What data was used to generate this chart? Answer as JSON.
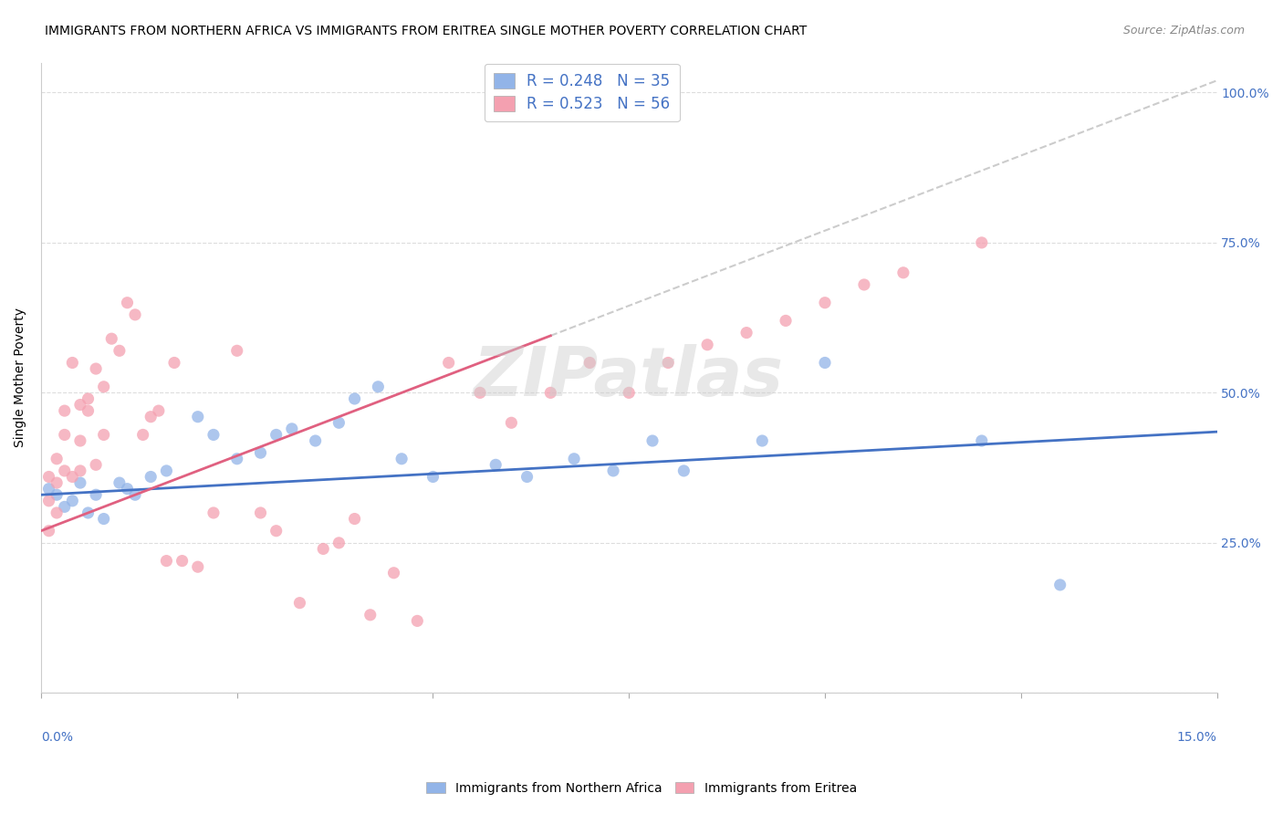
{
  "title": "IMMIGRANTS FROM NORTHERN AFRICA VS IMMIGRANTS FROM ERITREA SINGLE MOTHER POVERTY CORRELATION CHART",
  "source": "Source: ZipAtlas.com",
  "legend_label1": "Immigrants from Northern Africa",
  "legend_label2": "Immigrants from Eritrea",
  "R1": "0.248",
  "N1": "35",
  "R2": "0.523",
  "N2": "56",
  "color_blue": "#92B4E8",
  "color_pink": "#F4A0B0",
  "color_blue_line": "#4472C4",
  "color_pink_line": "#E06080",
  "color_blue_text": "#4472C4",
  "xlim": [
    0.0,
    0.15
  ],
  "ylim": [
    0.0,
    1.05
  ],
  "watermark": "ZIPatlas",
  "ylabel": "Single Mother Poverty",
  "blue_points_x": [
    0.001,
    0.002,
    0.003,
    0.004,
    0.005,
    0.006,
    0.007,
    0.008,
    0.01,
    0.011,
    0.012,
    0.014,
    0.016,
    0.02,
    0.022,
    0.025,
    0.028,
    0.03,
    0.032,
    0.035,
    0.038,
    0.04,
    0.043,
    0.046,
    0.05,
    0.058,
    0.062,
    0.068,
    0.073,
    0.078,
    0.082,
    0.092,
    0.1,
    0.12,
    0.13
  ],
  "blue_points_y": [
    0.34,
    0.33,
    0.31,
    0.32,
    0.35,
    0.3,
    0.33,
    0.29,
    0.35,
    0.34,
    0.33,
    0.36,
    0.37,
    0.46,
    0.43,
    0.39,
    0.4,
    0.43,
    0.44,
    0.42,
    0.45,
    0.49,
    0.51,
    0.39,
    0.36,
    0.38,
    0.36,
    0.39,
    0.37,
    0.42,
    0.37,
    0.42,
    0.55,
    0.42,
    0.18
  ],
  "pink_points_x": [
    0.001,
    0.001,
    0.001,
    0.002,
    0.002,
    0.002,
    0.003,
    0.003,
    0.003,
    0.004,
    0.004,
    0.005,
    0.005,
    0.005,
    0.006,
    0.006,
    0.007,
    0.007,
    0.008,
    0.008,
    0.009,
    0.01,
    0.011,
    0.012,
    0.013,
    0.014,
    0.015,
    0.016,
    0.017,
    0.018,
    0.02,
    0.022,
    0.025,
    0.028,
    0.03,
    0.033,
    0.036,
    0.038,
    0.04,
    0.042,
    0.045,
    0.048,
    0.052,
    0.056,
    0.06,
    0.065,
    0.07,
    0.075,
    0.08,
    0.085,
    0.09,
    0.095,
    0.1,
    0.105,
    0.11,
    0.12
  ],
  "pink_points_y": [
    0.27,
    0.32,
    0.36,
    0.3,
    0.35,
    0.39,
    0.37,
    0.43,
    0.47,
    0.36,
    0.55,
    0.37,
    0.42,
    0.48,
    0.47,
    0.49,
    0.38,
    0.54,
    0.43,
    0.51,
    0.59,
    0.57,
    0.65,
    0.63,
    0.43,
    0.46,
    0.47,
    0.22,
    0.55,
    0.22,
    0.21,
    0.3,
    0.57,
    0.3,
    0.27,
    0.15,
    0.24,
    0.25,
    0.29,
    0.13,
    0.2,
    0.12,
    0.55,
    0.5,
    0.45,
    0.5,
    0.55,
    0.5,
    0.55,
    0.58,
    0.6,
    0.62,
    0.65,
    0.68,
    0.7,
    0.75
  ]
}
